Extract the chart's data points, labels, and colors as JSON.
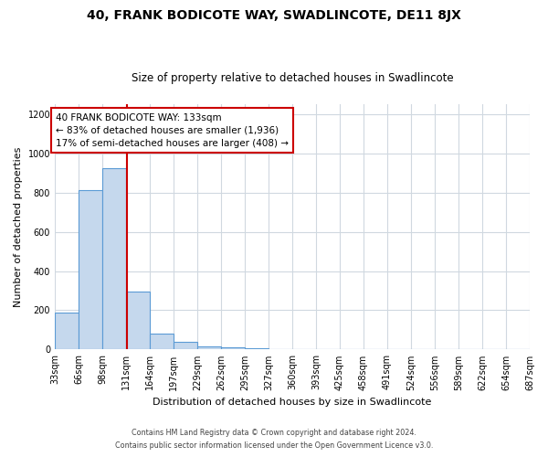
{
  "title": "40, FRANK BODICOTE WAY, SWADLINCOTE, DE11 8JX",
  "subtitle": "Size of property relative to detached houses in Swadlincote",
  "xlabel": "Distribution of detached houses by size in Swadlincote",
  "ylabel": "Number of detached properties",
  "footer_line1": "Contains HM Land Registry data © Crown copyright and database right 2024.",
  "footer_line2": "Contains public sector information licensed under the Open Government Licence v3.0.",
  "bar_edges": [
    33,
    66,
    99,
    132,
    165,
    198,
    231,
    264,
    297,
    330,
    363,
    396,
    429,
    462,
    495,
    528,
    561,
    594,
    627,
    660,
    693
  ],
  "bar_heights": [
    190,
    810,
    925,
    295,
    83,
    38,
    18,
    11,
    5,
    0,
    0,
    0,
    0,
    0,
    0,
    0,
    0,
    0,
    0,
    0
  ],
  "tick_labels": [
    "33sqm",
    "66sqm",
    "98sqm",
    "131sqm",
    "164sqm",
    "197sqm",
    "229sqm",
    "262sqm",
    "295sqm",
    "327sqm",
    "360sqm",
    "393sqm",
    "425sqm",
    "458sqm",
    "491sqm",
    "524sqm",
    "556sqm",
    "589sqm",
    "622sqm",
    "654sqm",
    "687sqm"
  ],
  "bar_color": "#c5d8ed",
  "bar_edge_color": "#5b9bd5",
  "vline_x": 133,
  "vline_color": "#cc0000",
  "annotation_box_color": "#cc0000",
  "annotation_title": "40 FRANK BODICOTE WAY: 133sqm",
  "annotation_line1": "← 83% of detached houses are smaller (1,936)",
  "annotation_line2": "17% of semi-detached houses are larger (408) →",
  "ylim": [
    0,
    1250
  ],
  "yticks": [
    0,
    200,
    400,
    600,
    800,
    1000,
    1200
  ],
  "background_color": "#ffffff",
  "plot_bg_color": "#ffffff",
  "grid_color": "#d0d8e0",
  "title_fontsize": 10,
  "subtitle_fontsize": 8.5,
  "axis_label_fontsize": 8,
  "tick_fontsize": 7,
  "annotation_fontsize": 7.5,
  "footer_fontsize": 5.8
}
